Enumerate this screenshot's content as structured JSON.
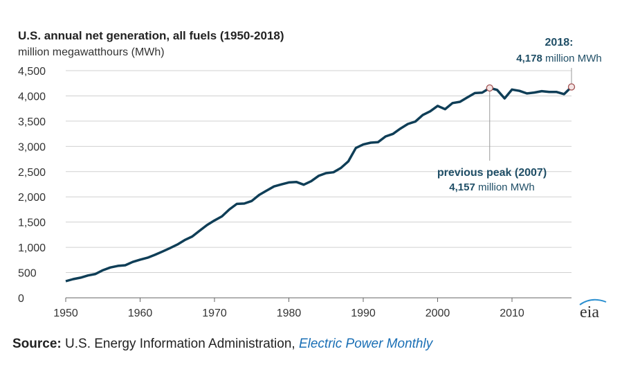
{
  "chart_data": {
    "type": "line",
    "title": "U.S. annual net generation, all fuels (1950-2018)",
    "ylabel": "million megawatthours (MWh)",
    "ylim": [
      0,
      4500
    ],
    "yticks": [
      0,
      500,
      1000,
      1500,
      2000,
      2500,
      3000,
      3500,
      4000,
      4500
    ],
    "ytick_labels": [
      "0",
      "500",
      "1,000",
      "1,500",
      "2,000",
      "2,500",
      "3,000",
      "3,500",
      "4,000",
      "4,500"
    ],
    "xlim": [
      1950,
      2018
    ],
    "xticks": [
      1950,
      1960,
      1970,
      1980,
      1990,
      2000,
      2010
    ],
    "xtick_labels": [
      "1950",
      "1960",
      "1970",
      "1980",
      "1990",
      "2000",
      "2010"
    ],
    "grid": true,
    "line_color": "#0f3e57",
    "x": [
      1950,
      1951,
      1952,
      1953,
      1954,
      1955,
      1956,
      1957,
      1958,
      1959,
      1960,
      1961,
      1962,
      1963,
      1964,
      1965,
      1966,
      1967,
      1968,
      1969,
      1970,
      1971,
      1972,
      1973,
      1974,
      1975,
      1976,
      1977,
      1978,
      1979,
      1980,
      1981,
      1982,
      1983,
      1984,
      1985,
      1986,
      1987,
      1988,
      1989,
      1990,
      1991,
      1992,
      1993,
      1994,
      1995,
      1996,
      1997,
      1998,
      1999,
      2000,
      2001,
      2002,
      2003,
      2004,
      2005,
      2006,
      2007,
      2008,
      2009,
      2010,
      2011,
      2012,
      2013,
      2014,
      2015,
      2016,
      2017,
      2018
    ],
    "values": [
      329,
      371,
      399,
      443,
      472,
      547,
      601,
      632,
      645,
      710,
      756,
      794,
      852,
      917,
      984,
      1055,
      1144,
      1214,
      1329,
      1442,
      1532,
      1613,
      1750,
      1861,
      1867,
      1918,
      2038,
      2124,
      2206,
      2247,
      2286,
      2295,
      2241,
      2310,
      2416,
      2470,
      2487,
      2572,
      2704,
      2967,
      3038,
      3073,
      3084,
      3197,
      3247,
      3353,
      3444,
      3492,
      3620,
      3694,
      3802,
      3737,
      3858,
      3883,
      3971,
      4055,
      4065,
      4157,
      4119,
      3950,
      4125,
      4100,
      4048,
      4066,
      4094,
      4078,
      4077,
      4035,
      4178
    ],
    "annotations": [
      {
        "x": 2018,
        "y": 4178,
        "label_bold": "2018:",
        "label_value": "4,178",
        "label_unit": "million MWh"
      },
      {
        "x": 2007,
        "y": 4157,
        "label_bold": "previous peak (2007)",
        "label_value": "4,157",
        "label_unit": "million MWh"
      }
    ]
  },
  "logo": "eia",
  "footer": {
    "source_label": "Source:",
    "source_text": "U.S. Energy Information Administration,",
    "source_link": "Electric Power Monthly"
  }
}
